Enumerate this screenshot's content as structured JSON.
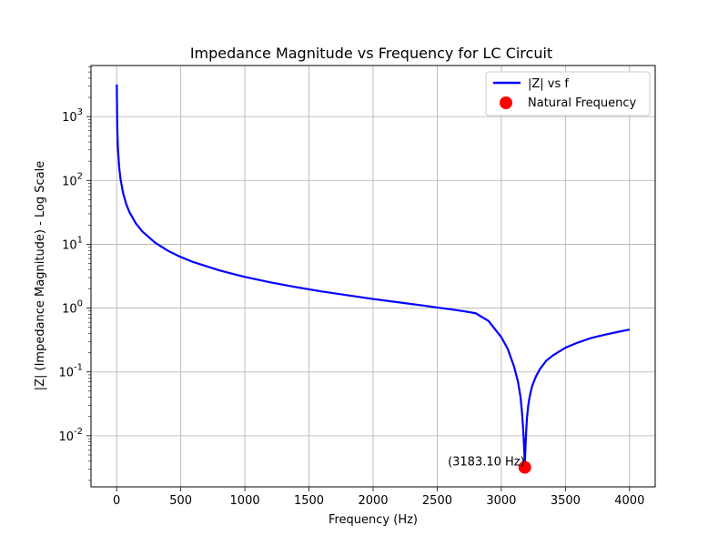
{
  "chart_data": {
    "type": "line",
    "title": "Impedance Magnitude vs Frequency for LC Circuit",
    "xlabel": "Frequency (Hz)",
    "ylabel": "|Z| (Impedance Magnitude) - Log Scale",
    "xlim": [
      -200,
      4200
    ],
    "ylim_log10": [
      -2.8,
      3.8
    ],
    "yscale": "log",
    "grid": true,
    "legend_position": "top-right",
    "x_ticks": [
      0,
      500,
      1000,
      1500,
      2000,
      2500,
      3000,
      3500,
      4000
    ],
    "y_tick_exponents": [
      -2,
      -1,
      0,
      1,
      2,
      3
    ],
    "colors": {
      "line": "#0000ff",
      "marker": "#ff0000"
    },
    "series": [
      {
        "name": "|Z| vs f",
        "x": [
          1,
          5,
          10,
          20,
          30,
          50,
          75,
          100,
          150,
          200,
          300,
          400,
          500,
          600,
          800,
          1000,
          1200,
          1400,
          1500,
          1600,
          1800,
          2000,
          2200,
          2400,
          2500,
          2600,
          2700,
          2800,
          2900,
          3000,
          3050,
          3100,
          3130,
          3150,
          3160,
          3170,
          3175,
          3180,
          3183.1,
          3186,
          3190,
          3195,
          3200,
          3210,
          3220,
          3240,
          3270,
          3300,
          3350,
          3400,
          3500,
          3600,
          3700,
          3800,
          3900,
          4000
        ],
        "y": [
          3183.1,
          636.6,
          318.3,
          159.1,
          106.1,
          63.6,
          42.4,
          31.8,
          21.2,
          15.9,
          10.6,
          7.91,
          6.31,
          5.24,
          3.9,
          3.08,
          2.53,
          2.13,
          1.97,
          1.82,
          1.59,
          1.39,
          1.23,
          1.09,
          1.02,
          0.96,
          0.9,
          0.83,
          0.63,
          0.35,
          0.23,
          0.12,
          0.07,
          0.04,
          0.025,
          0.013,
          0.0085,
          0.005,
          0.0032,
          0.005,
          0.008,
          0.013,
          0.019,
          0.03,
          0.04,
          0.06,
          0.085,
          0.11,
          0.15,
          0.18,
          0.24,
          0.29,
          0.34,
          0.38,
          0.42,
          0.46
        ]
      },
      {
        "name": "Natural Frequency",
        "x": [
          3183.1
        ],
        "y": [
          0.0032
        ]
      }
    ],
    "annotation": "(3183.10 Hz)"
  }
}
